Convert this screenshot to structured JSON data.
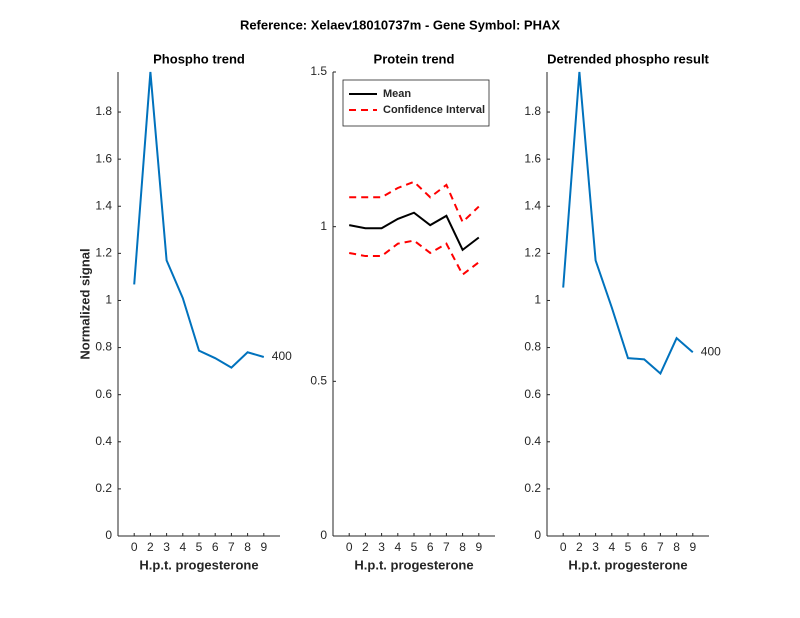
{
  "title": "Reference:  Xelaev18010737m - Gene Symbol:  PHAX",
  "chart_data": [
    {
      "type": "line",
      "title": "Phospho trend",
      "xlabel": "H.p.t. progesterone",
      "ylabel": "Normalized signal",
      "categories": [
        "0",
        "2",
        "3",
        "4",
        "5",
        "6",
        "7",
        "8",
        "9"
      ],
      "series": [
        {
          "color": "#0072bd",
          "values": [
            1.068,
            1.97,
            1.17,
            1.01,
            0.787,
            0.755,
            0.715,
            0.78,
            0.76
          ]
        }
      ],
      "ylim": [
        0,
        1.97
      ],
      "yticks": [
        0,
        0.2,
        0.4,
        0.6,
        0.8,
        1,
        1.2,
        1.4,
        1.6,
        1.8
      ],
      "annotation": "400"
    },
    {
      "type": "line",
      "title": "Protein trend",
      "xlabel": "H.p.t. progesterone",
      "categories": [
        "0",
        "2",
        "3",
        "4",
        "5",
        "6",
        "7",
        "8",
        "9"
      ],
      "series": [
        {
          "name": "Mean",
          "color": "#000000",
          "values": [
            1.005,
            0.995,
            0.995,
            1.025,
            1.045,
            1.005,
            1.035,
            0.925,
            0.965
          ]
        },
        {
          "name": "Confidence Interval",
          "color": "#ff0000",
          "dashed": true,
          "values": [
            1.095,
            1.095,
            1.095,
            1.125,
            1.145,
            1.095,
            1.135,
            1.015,
            1.065
          ],
          "lower": [
            0.915,
            0.905,
            0.905,
            0.945,
            0.955,
            0.915,
            0.945,
            0.845,
            0.885
          ]
        }
      ],
      "ylim": [
        0,
        1.5
      ],
      "yticks": [
        0,
        0.5,
        1,
        1.5
      ],
      "legend": "upper-left"
    },
    {
      "type": "line",
      "title": "Detrended phospho result",
      "xlabel": "H.p.t. progesterone",
      "categories": [
        "0",
        "2",
        "3",
        "4",
        "5",
        "6",
        "7",
        "8",
        "9"
      ],
      "series": [
        {
          "color": "#0072bd",
          "values": [
            1.055,
            1.97,
            1.17,
            0.97,
            0.755,
            0.75,
            0.69,
            0.84,
            0.78
          ]
        }
      ],
      "ylim": [
        0,
        1.97
      ],
      "yticks": [
        0,
        0.2,
        0.4,
        0.6,
        0.8,
        1,
        1.2,
        1.4,
        1.6,
        1.8
      ],
      "annotation": "400"
    }
  ]
}
